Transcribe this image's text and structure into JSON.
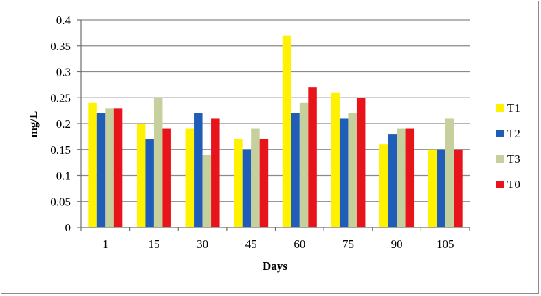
{
  "chart_data": {
    "type": "bar",
    "title": "",
    "xlabel": "Days",
    "ylabel": "mg/L",
    "ylim": [
      0,
      0.4
    ],
    "yticks": [
      "0",
      "0.05",
      "0.1",
      "0.15",
      "0.2",
      "0.25",
      "0.3",
      "0.35",
      "0.4"
    ],
    "grid": true,
    "legend_position": "right",
    "categories": [
      "1",
      "15",
      "30",
      "45",
      "60",
      "75",
      "90",
      "105"
    ],
    "series": [
      {
        "name": "T1",
        "color": "#FFF200",
        "values": [
          0.24,
          0.2,
          0.19,
          0.17,
          0.37,
          0.26,
          0.16,
          0.15
        ]
      },
      {
        "name": "T2",
        "color": "#1F5DB8",
        "values": [
          0.22,
          0.17,
          0.22,
          0.15,
          0.22,
          0.21,
          0.18,
          0.15
        ]
      },
      {
        "name": "T3",
        "color": "#C5D09C",
        "values": [
          0.23,
          0.25,
          0.14,
          0.19,
          0.24,
          0.22,
          0.19,
          0.21
        ]
      },
      {
        "name": "T0",
        "color": "#E8141B",
        "values": [
          0.23,
          0.19,
          0.21,
          0.17,
          0.27,
          0.25,
          0.19,
          0.15
        ]
      }
    ]
  }
}
